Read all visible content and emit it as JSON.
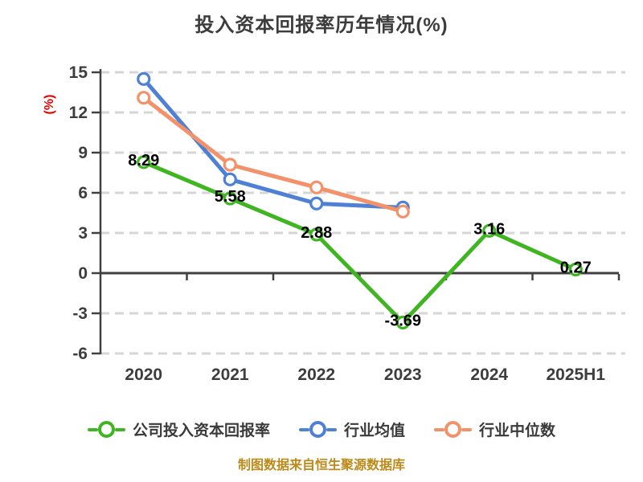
{
  "title": "投入资本回报率历年情况(%)",
  "chart_data": {
    "type": "line",
    "title": "投入资本回报率历年情况(%)",
    "categories": [
      "2020",
      "2021",
      "2022",
      "2023",
      "2024",
      "2025H1"
    ],
    "series": [
      {
        "name": "公司投入资本回报率",
        "color": "#3fb522",
        "values": [
          8.29,
          5.58,
          2.88,
          -3.69,
          3.16,
          0.27
        ],
        "show_labels": true,
        "labels": [
          "8.29",
          "5.58",
          "2.88",
          "-3.69",
          "3.16",
          "0.27"
        ]
      },
      {
        "name": "行业均值",
        "color": "#4e80d5",
        "values": [
          14.5,
          7.0,
          5.2,
          4.9
        ],
        "show_labels": false
      },
      {
        "name": "行业中位数",
        "color": "#f3916a",
        "values": [
          13.1,
          8.1,
          6.4,
          4.6
        ],
        "show_labels": false
      }
    ],
    "y_axis": {
      "label": "(%)",
      "ticks": [
        15,
        12,
        9,
        6,
        3,
        0,
        -3,
        -6
      ],
      "range": [
        -6,
        15
      ]
    },
    "x_axis": {
      "labels": [
        "2020",
        "2021",
        "2022",
        "2023",
        "2024",
        "2025H1"
      ]
    },
    "legend": {
      "position": "bottom",
      "entries": [
        "公司投入资本回报率",
        "行业均值",
        "行业中位数"
      ]
    },
    "grid": {
      "dashed": true,
      "visible": true
    },
    "footer": "制图数据来自恒生聚源数据库",
    "colors": {
      "grid": "#d6d6d6",
      "axis": "#404040",
      "tick_label": "#3d3d3d",
      "title": "#3c3c3c",
      "data_label": "#000000",
      "y_unit_label": "#e60000",
      "footer": "#bd8a1a",
      "marker_fill": "#ffffff"
    }
  }
}
